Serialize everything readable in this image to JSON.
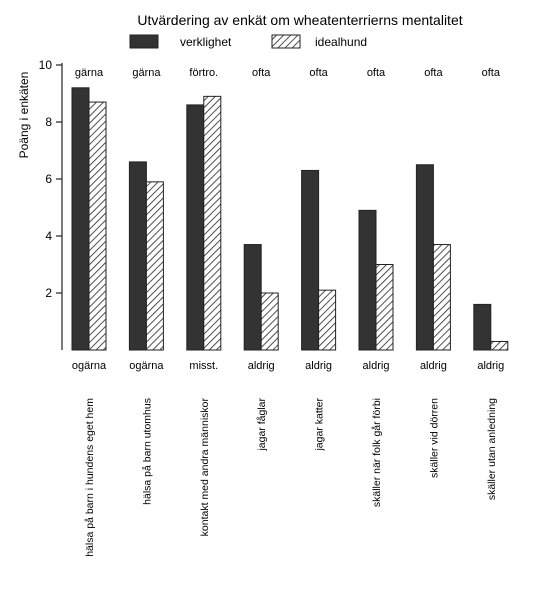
{
  "chart_data": {
    "type": "bar",
    "title": "Utvärdering av enkät om wheatenterrierns mentalitet",
    "ylabel": "Poäng i enkäten",
    "xlabel": "",
    "ylim": [
      0,
      10
    ],
    "yticks": [
      2,
      4,
      6,
      8,
      10
    ],
    "grid": false,
    "legend_position": "top-center",
    "categories": [
      "hälsa på barn i hundens eget hem",
      "hälsa på barn utomhus",
      "kontakt med andra människor",
      "jagar fåglar",
      "jagar katter",
      "skäller när folk går förbi",
      "skäller vid dörren",
      "skäller utan anledning"
    ],
    "top_labels": [
      "gärna",
      "gärna",
      "förtro.",
      "ofta",
      "ofta",
      "ofta",
      "ofta",
      "ofta"
    ],
    "bottom_labels": [
      "ogärna",
      "ogärna",
      "misst.",
      "aldrig",
      "aldrig",
      "aldrig",
      "aldrig",
      "aldrig"
    ],
    "series": [
      {
        "name": "verklighet",
        "values": [
          9.2,
          6.6,
          8.6,
          3.7,
          6.3,
          4.9,
          6.5,
          1.6
        ],
        "color": "#333333",
        "pattern": "solid"
      },
      {
        "name": "idealhund",
        "values": [
          8.7,
          5.9,
          8.9,
          2.0,
          2.1,
          3.0,
          3.7,
          0.3
        ],
        "color": "#333333",
        "pattern": "diagonal-hatch"
      }
    ]
  }
}
